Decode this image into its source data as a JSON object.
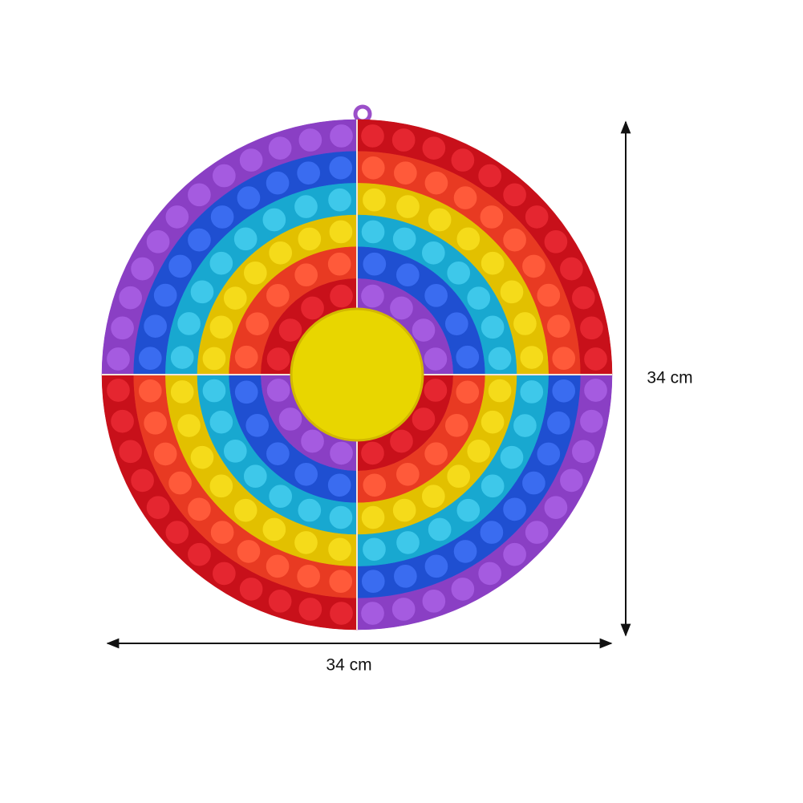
{
  "dimensions": {
    "height": "34 cm",
    "width": "34 cm"
  }
}
